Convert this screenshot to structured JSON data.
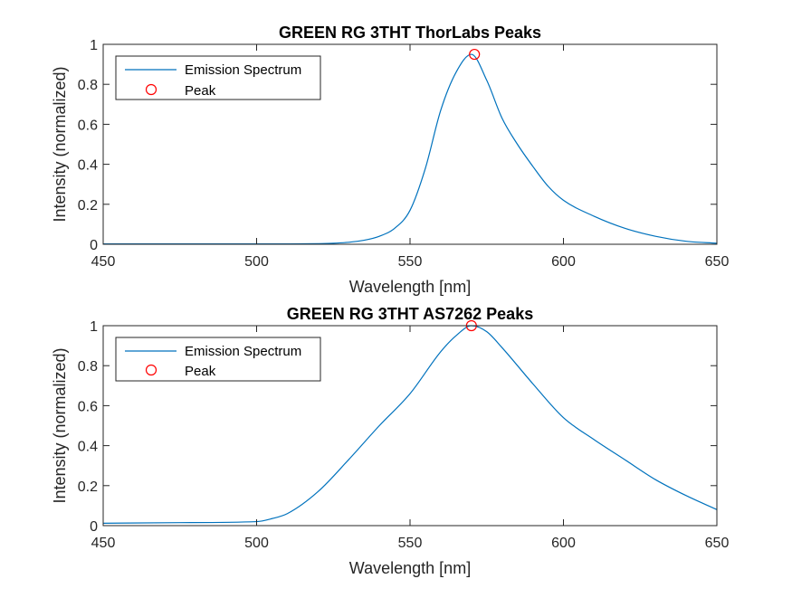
{
  "figure": {
    "background": "#ffffff"
  },
  "colors": {
    "series": "#0072bd",
    "peak_marker": "#ff0000",
    "axes": "#262626"
  },
  "chart_data": [
    {
      "type": "line",
      "title": "GREEN RG 3THT ThorLabs Peaks",
      "xlabel": "Wavelength [nm]",
      "ylabel": "Intensity (normalized)",
      "xlim": [
        450,
        650
      ],
      "ylim": [
        0,
        1
      ],
      "xticks": [
        450,
        500,
        550,
        600,
        650
      ],
      "xtick_labels": [
        "450",
        "500",
        "550",
        "600",
        "650"
      ],
      "yticks": [
        0,
        0.2,
        0.4,
        0.6,
        0.8,
        1
      ],
      "ytick_labels": [
        "0",
        "0.2",
        "0.4",
        "0.6",
        "0.8",
        "1"
      ],
      "grid": false,
      "legend_position": "top-left",
      "legend": [
        "Emission Spectrum",
        "Peak"
      ],
      "series": [
        {
          "name": "Emission Spectrum",
          "kind": "line",
          "x": [
            450,
            480,
            510,
            520,
            525,
            530,
            535,
            540,
            545,
            550,
            555,
            560,
            565,
            570,
            575,
            580,
            585,
            590,
            595,
            600,
            610,
            620,
            630,
            640,
            650
          ],
          "y": [
            0.002,
            0.002,
            0.002,
            0.003,
            0.005,
            0.01,
            0.02,
            0.04,
            0.08,
            0.17,
            0.38,
            0.67,
            0.86,
            0.95,
            0.82,
            0.63,
            0.5,
            0.39,
            0.29,
            0.22,
            0.14,
            0.08,
            0.04,
            0.015,
            0.005
          ]
        },
        {
          "name": "Peak",
          "kind": "marker",
          "x": [
            571
          ],
          "y": [
            0.95
          ]
        }
      ]
    },
    {
      "type": "line",
      "title": "GREEN RG 3THT AS7262 Peaks",
      "xlabel": "Wavelength [nm]",
      "ylabel": "Intensity (normalized)",
      "xlim": [
        450,
        650
      ],
      "ylim": [
        0,
        1
      ],
      "xticks": [
        450,
        500,
        550,
        600,
        650
      ],
      "xtick_labels": [
        "450",
        "500",
        "550",
        "600",
        "650"
      ],
      "yticks": [
        0,
        0.2,
        0.4,
        0.6,
        0.8,
        1
      ],
      "ytick_labels": [
        "0",
        "0.2",
        "0.4",
        "0.6",
        "0.8",
        "1"
      ],
      "grid": false,
      "legend_position": "top-left",
      "legend": [
        "Emission Spectrum",
        "Peak"
      ],
      "series": [
        {
          "name": "Emission Spectrum",
          "kind": "line",
          "x": [
            450,
            475,
            500,
            505,
            510,
            520,
            530,
            540,
            550,
            560,
            565,
            570,
            575,
            580,
            590,
            600,
            610,
            620,
            630,
            640,
            650
          ],
          "y": [
            0.012,
            0.015,
            0.02,
            0.035,
            0.06,
            0.17,
            0.33,
            0.5,
            0.66,
            0.87,
            0.95,
            1.0,
            0.97,
            0.89,
            0.71,
            0.54,
            0.43,
            0.33,
            0.23,
            0.15,
            0.08
          ]
        },
        {
          "name": "Peak",
          "kind": "marker",
          "x": [
            570
          ],
          "y": [
            1.0
          ]
        }
      ]
    }
  ]
}
